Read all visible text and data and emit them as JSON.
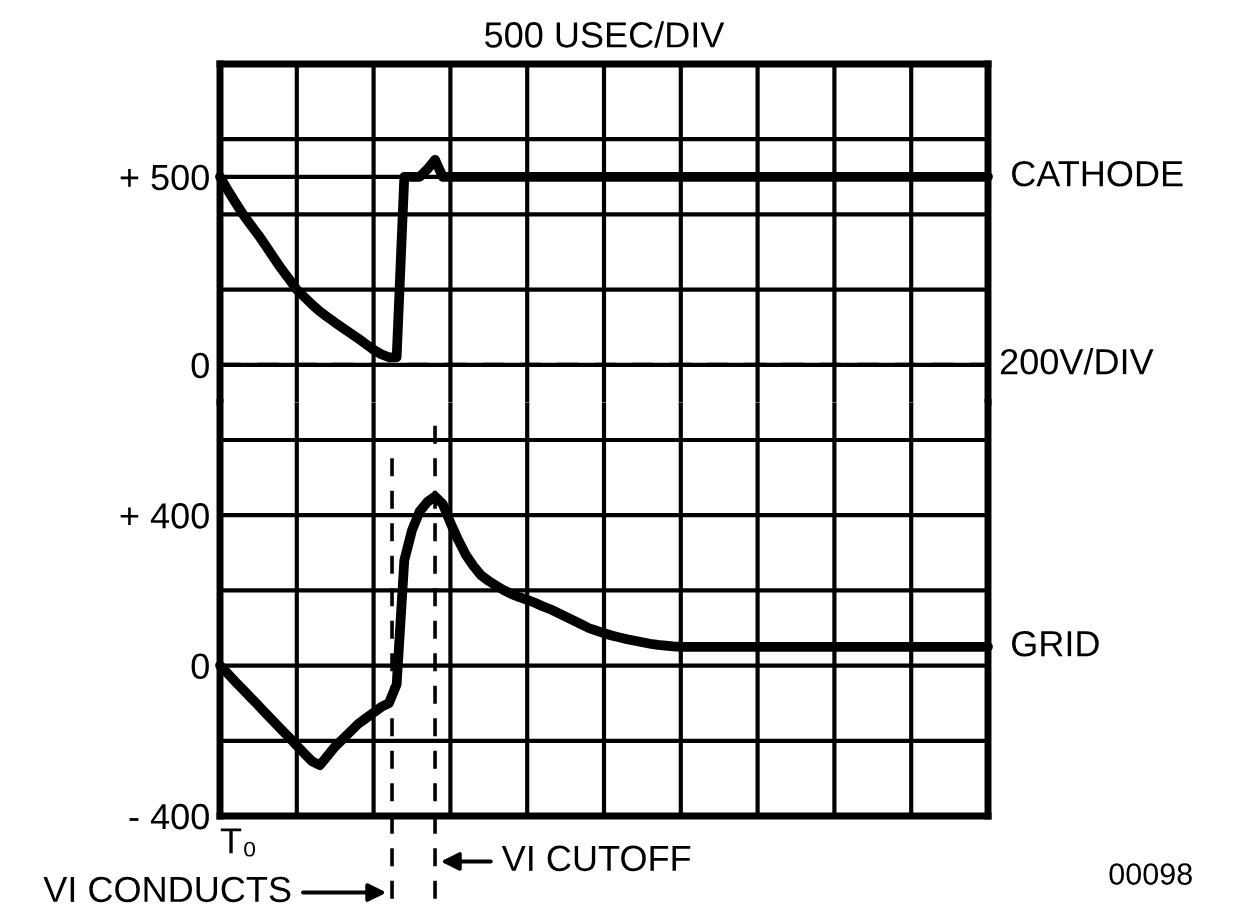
{
  "chart_data": [
    {
      "type": "line",
      "title": "500 USEC/DIV",
      "categories": [
        null,
        null,
        null,
        null,
        null,
        null,
        null,
        null,
        null,
        null,
        null,
        null,
        null,
        null,
        null,
        null,
        null,
        null,
        null,
        null,
        null,
        null,
        null,
        null,
        null,
        null,
        null,
        null,
        null,
        null,
        null,
        null,
        null,
        null,
        null,
        null,
        null,
        null,
        null,
        null,
        null,
        null,
        null,
        null,
        null,
        null,
        null,
        null,
        null,
        null,
        null,
        null,
        null,
        null,
        null,
        null,
        null,
        null,
        null,
        null,
        null,
        null,
        null,
        null,
        null,
        null,
        null,
        null,
        null,
        null,
        null,
        null,
        null,
        null,
        null,
        null,
        null,
        null,
        null,
        null,
        null,
        null,
        null,
        null,
        null,
        null,
        null,
        null,
        null,
        null,
        null,
        null,
        null,
        null,
        null,
        null,
        null,
        null,
        null,
        null,
        null
      ],
      "ylim": [
        -100,
        800
      ],
      "yticks": [
        0,
        {
          "value": 200,
          "label": null
        },
        {
          "value": 400,
          "label": null
        },
        {
          "value": 500,
          "label": "+ 500"
        },
        {
          "value": 600,
          "label": null
        },
        {
          "value": 800,
          "label": null
        }
      ],
      "grid": true,
      "legend": false,
      "marker": "none",
      "line_style": "solid",
      "series": [
        {
          "name": "CATHODE",
          "color": "#000000",
          "values": [
            500,
            465,
            432,
            400,
            372,
            345,
            315,
            285,
            255,
            228,
            200,
            180,
            160,
            142,
            127,
            112,
            98,
            84,
            70,
            55,
            40,
            28,
            20,
            20,
            500,
            500,
            500,
            520,
            545,
            500,
            500,
            500,
            500,
            500,
            500,
            500,
            500,
            500,
            500,
            500,
            500,
            500,
            500,
            500,
            500,
            500,
            500,
            500,
            500,
            500,
            500,
            500,
            500,
            500,
            500,
            500,
            500,
            500,
            500,
            500,
            500,
            500,
            500,
            500,
            500,
            500,
            500,
            500,
            500,
            500,
            500,
            500,
            500,
            500,
            500,
            500,
            500,
            500,
            500,
            500,
            500,
            500,
            500,
            500,
            500,
            500,
            500,
            500,
            500,
            500,
            500,
            500,
            500,
            500,
            500,
            500,
            500,
            500,
            500,
            500,
            500
          ]
        }
      ],
      "ref_lines": [
        {
          "axis": "y",
          "value": 0,
          "label": "200V/DIV",
          "line_style": "dashed",
          "color": "#000000"
        }
      ]
    },
    {
      "type": "line",
      "categories": [
        null,
        null,
        null,
        null,
        null,
        null,
        null,
        null,
        null,
        null,
        null,
        null,
        null,
        null,
        null,
        null,
        null,
        null,
        null,
        null,
        null,
        null,
        null,
        null,
        null,
        null,
        null,
        null,
        null,
        null,
        null,
        null,
        null,
        null,
        null,
        null,
        null,
        null,
        null,
        null,
        null,
        null,
        null,
        null,
        null,
        null,
        null,
        null,
        null,
        null,
        null,
        null,
        null,
        null,
        null,
        null,
        null,
        null,
        null,
        null,
        null,
        null,
        null,
        null,
        null,
        null,
        null,
        null,
        null,
        null,
        null,
        null,
        null,
        null,
        null,
        null,
        null,
        null,
        null,
        null,
        null,
        null,
        null,
        null,
        null,
        null,
        null,
        null,
        null,
        null,
        null,
        null,
        null,
        null,
        null,
        null,
        null,
        null,
        null,
        null,
        null
      ],
      "ylim": [
        -400,
        700
      ],
      "yticks": [
        {
          "value": -400,
          "label": "- 400"
        },
        {
          "value": -200,
          "label": null
        },
        0,
        {
          "value": 200,
          "label": null
        },
        {
          "value": 400,
          "label": "+ 400"
        },
        {
          "value": 600,
          "label": null
        }
      ],
      "grid": true,
      "legend": false,
      "marker": "none",
      "line_style": "solid",
      "series": [
        {
          "name": "GRID",
          "color": "#000000",
          "values": [
            0,
            -21,
            -43,
            -64,
            -85,
            -106,
            -128,
            -149,
            -170,
            -191,
            -213,
            -234,
            -255,
            -265,
            -240,
            -215,
            -195,
            -175,
            -155,
            -140,
            -125,
            -110,
            -100,
            -50,
            280,
            360,
            410,
            435,
            450,
            430,
            380,
            335,
            295,
            265,
            240,
            225,
            212,
            200,
            190,
            182,
            175,
            167,
            158,
            150,
            140,
            130,
            120,
            110,
            100,
            93,
            86,
            80,
            75,
            70,
            66,
            62,
            58,
            55,
            53,
            51,
            50,
            50,
            50,
            50,
            50,
            50,
            50,
            50,
            50,
            50,
            50,
            50,
            50,
            50,
            50,
            50,
            50,
            50,
            50,
            50,
            50,
            50,
            50,
            50,
            50,
            50,
            50,
            50,
            50,
            50,
            50,
            50,
            50,
            50,
            50,
            50,
            50,
            50,
            50,
            50,
            50
          ]
        }
      ],
      "annotations": [
        "T₀",
        "VI CONDUCTS",
        "VI CUTOFF",
        "00098"
      ]
    }
  ]
}
